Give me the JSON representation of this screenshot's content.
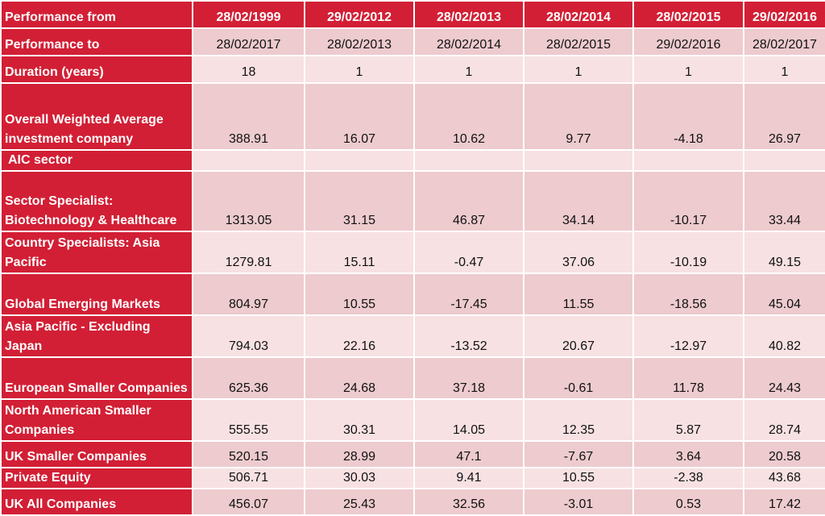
{
  "header": {
    "row_label": "Performance from",
    "from_dates": [
      "28/02/1999",
      "29/02/2012",
      "28/02/2013",
      "28/02/2014",
      "28/02/2015",
      "29/02/2016"
    ]
  },
  "perf_to": {
    "label": "Performance to",
    "values": [
      "28/02/2017",
      "28/02/2013",
      "28/02/2014",
      "28/02/2015",
      "29/02/2016",
      "28/02/2017"
    ]
  },
  "duration": {
    "label": "Duration (years)",
    "values": [
      "18",
      "1",
      "1",
      "1",
      "1",
      "1"
    ]
  },
  "overall": {
    "label": "Overall Weighted Average investment company",
    "values": [
      "388.91",
      "16.07",
      "10.62",
      "9.77",
      "-4.18",
      "26.97"
    ]
  },
  "aic_sector_label": "AIC sector",
  "sectors": [
    {
      "label": "Sector Specialist: Biotechnology & Healthcare",
      "values": [
        "1313.05",
        "31.15",
        "46.87",
        "34.14",
        "-10.17",
        "33.44"
      ]
    },
    {
      "label": "Country Specialists: Asia Pacific",
      "values": [
        "1279.81",
        "15.11",
        "-0.47",
        "37.06",
        "-10.19",
        "49.15"
      ]
    },
    {
      "label": "Global Emerging Markets",
      "values": [
        "804.97",
        "10.55",
        "-17.45",
        "11.55",
        "-18.56",
        "45.04"
      ]
    },
    {
      "label": "Asia Pacific - Excluding Japan",
      "values": [
        "794.03",
        "22.16",
        "-13.52",
        "20.67",
        "-12.97",
        "40.82"
      ]
    },
    {
      "label": "European Smaller Companies",
      "values": [
        "625.36",
        "24.68",
        "37.18",
        "-0.61",
        "11.78",
        "24.43"
      ]
    },
    {
      "label": "North American Smaller Companies",
      "values": [
        "555.55",
        "30.31",
        "14.05",
        "12.35",
        "5.87",
        "28.74"
      ]
    },
    {
      "label": "UK Smaller Companies",
      "values": [
        "520.15",
        "28.99",
        "47.1",
        "-7.67",
        "3.64",
        "20.58"
      ]
    },
    {
      "label": "Private Equity",
      "values": [
        "506.71",
        "30.03",
        "9.41",
        "10.55",
        "-2.38",
        "43.68"
      ]
    },
    {
      "label": "UK All Companies",
      "values": [
        "456.07",
        "25.43",
        "32.56",
        "-3.01",
        "0.53",
        "17.42"
      ]
    }
  ],
  "colors": {
    "header_red": "#d21f35",
    "cell_light": "#f7e1e3",
    "cell_dark": "#edcbce"
  }
}
